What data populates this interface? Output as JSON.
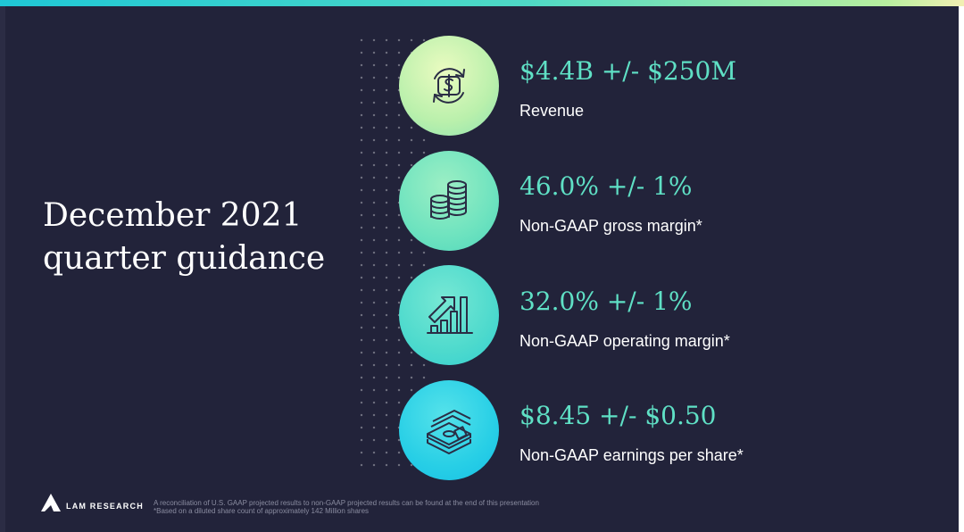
{
  "slide": {
    "title_line1": "December 2021",
    "title_line2": "quarter guidance",
    "items": [
      {
        "value": "$4.4B +/- $250M",
        "label": "Revenue",
        "icon": "dollar-cycle-icon"
      },
      {
        "value": "46.0% +/- 1%",
        "label": "Non-GAAP gross margin*",
        "icon": "coin-stacks-icon"
      },
      {
        "value": "32.0% +/- 1%",
        "label": "Non-GAAP operating margin*",
        "icon": "growth-chart-icon"
      },
      {
        "value": "$8.45 +/- $0.50",
        "label": "Non-GAAP earnings per share*",
        "icon": "money-stack-icon"
      }
    ],
    "colors": {
      "background": "#22233a",
      "accent_value": "#5fe0c5",
      "topbar_gradient": [
        "#1fc7d6",
        "#4fd9c5",
        "#b8ef9f",
        "#f2efb3"
      ]
    }
  },
  "footer": {
    "brand": "LAM RESEARCH",
    "note1": "A reconciliation of U.S. GAAP projected results to non-GAAP projected results can be found at the end of this presentation",
    "note2": "*Based on a diluted share count of approximately 142 Million shares"
  }
}
